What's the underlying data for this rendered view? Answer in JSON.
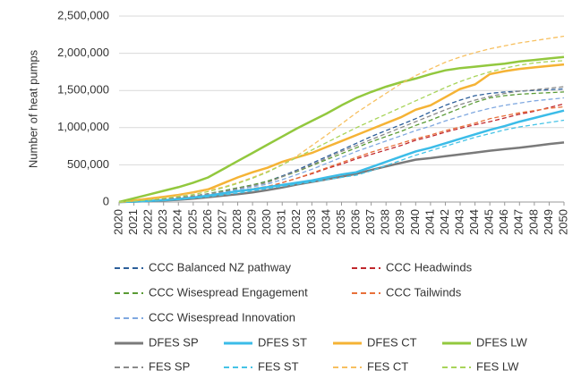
{
  "chart_data": {
    "type": "line",
    "ylabel": "Number of heat pumps",
    "x": [
      2020,
      2021,
      2022,
      2023,
      2024,
      2025,
      2026,
      2027,
      2028,
      2029,
      2030,
      2031,
      2032,
      2033,
      2034,
      2035,
      2036,
      2037,
      2038,
      2039,
      2040,
      2041,
      2042,
      2043,
      2044,
      2045,
      2046,
      2047,
      2048,
      2049,
      2050
    ],
    "xlim": [
      2020,
      2050
    ],
    "ylim": [
      0,
      2500000
    ],
    "yticks": [
      0,
      {
        "value": 500000,
        "label": "500,000"
      },
      {
        "value": 1000000,
        "label": "1,000,000"
      },
      {
        "value": 1500000,
        "label": "1,500,000"
      },
      {
        "value": 2000000,
        "label": "2,000,000"
      },
      {
        "value": 2500000,
        "label": "2,500,000"
      }
    ],
    "grid": true,
    "series": [
      {
        "name": "CCC Balanced NZ pathway",
        "color": "#2d5f9a",
        "style": "dashed",
        "values": [
          0,
          10000,
          20000,
          40000,
          60000,
          80000,
          110000,
          150000,
          190000,
          230000,
          280000,
          350000,
          430000,
          520000,
          610000,
          700000,
          790000,
          880000,
          960000,
          1040000,
          1120000,
          1210000,
          1300000,
          1370000,
          1430000,
          1460000,
          1480000,
          1490000,
          1500000,
          1510000,
          1520000
        ]
      },
      {
        "name": "CCC Headwinds",
        "color": "#c0282d",
        "style": "dashed",
        "values": [
          0,
          8000,
          16000,
          30000,
          45000,
          60000,
          85000,
          115000,
          145000,
          170000,
          200000,
          260000,
          320000,
          380000,
          450000,
          510000,
          580000,
          640000,
          700000,
          760000,
          830000,
          880000,
          940000,
          990000,
          1040000,
          1080000,
          1130000,
          1180000,
          1220000,
          1270000,
          1320000
        ]
      },
      {
        "name": "CCC Wisespread Engagement",
        "color": "#5a9b35",
        "style": "dashed",
        "values": [
          0,
          10000,
          20000,
          38000,
          58000,
          80000,
          110000,
          150000,
          190000,
          230000,
          280000,
          340000,
          410000,
          490000,
          570000,
          650000,
          730000,
          810000,
          880000,
          950000,
          1030000,
          1100000,
          1180000,
          1260000,
          1340000,
          1400000,
          1430000,
          1450000,
          1460000,
          1470000,
          1480000
        ]
      },
      {
        "name": "CCC Tailwinds",
        "color": "#e8703a",
        "style": "dashed",
        "values": [
          0,
          8000,
          18000,
          32000,
          48000,
          65000,
          90000,
          120000,
          150000,
          180000,
          210000,
          260000,
          320000,
          390000,
          460000,
          530000,
          600000,
          670000,
          730000,
          790000,
          850000,
          900000,
          960000,
          1010000,
          1060000,
          1120000,
          1160000,
          1200000,
          1230000,
          1260000,
          1280000
        ]
      },
      {
        "name": "CCC Wisespread Innovation",
        "color": "#7fa8e0",
        "style": "dashed",
        "values": [
          0,
          9000,
          19000,
          35000,
          52000,
          72000,
          100000,
          135000,
          170000,
          205000,
          240000,
          300000,
          370000,
          440000,
          520000,
          600000,
          680000,
          750000,
          820000,
          890000,
          960000,
          1020000,
          1090000,
          1150000,
          1210000,
          1260000,
          1300000,
          1330000,
          1360000,
          1380000,
          1400000
        ]
      },
      {
        "name": "DFES SP",
        "color": "#7a7a7a",
        "style": "solid",
        "values": [
          0,
          5000,
          12000,
          20000,
          30000,
          45000,
          65000,
          85000,
          105000,
          130000,
          160000,
          195000,
          235000,
          270000,
          305000,
          340000,
          380000,
          430000,
          480000,
          525000,
          570000,
          590000,
          615000,
          640000,
          665000,
          690000,
          710000,
          730000,
          755000,
          780000,
          800000
        ]
      },
      {
        "name": "DFES ST",
        "color": "#3bbce8",
        "style": "solid",
        "values": [
          0,
          6000,
          14000,
          25000,
          40000,
          60000,
          85000,
          115000,
          145000,
          170000,
          200000,
          230000,
          260000,
          290000,
          330000,
          370000,
          400000,
          470000,
          540000,
          610000,
          680000,
          730000,
          790000,
          850000,
          910000,
          970000,
          1020000,
          1080000,
          1130000,
          1180000,
          1230000
        ]
      },
      {
        "name": "DFES CT",
        "color": "#f5b335",
        "style": "solid",
        "values": [
          0,
          20000,
          45000,
          70000,
          95000,
          130000,
          170000,
          250000,
          330000,
          400000,
          460000,
          540000,
          600000,
          660000,
          740000,
          820000,
          900000,
          980000,
          1060000,
          1140000,
          1240000,
          1300000,
          1410000,
          1520000,
          1580000,
          1720000,
          1760000,
          1790000,
          1810000,
          1830000,
          1850000
        ]
      },
      {
        "name": "DFES LW",
        "color": "#92c83e",
        "style": "solid",
        "values": [
          0,
          50000,
          100000,
          150000,
          200000,
          260000,
          330000,
          440000,
          550000,
          660000,
          770000,
          880000,
          990000,
          1090000,
          1190000,
          1300000,
          1400000,
          1480000,
          1550000,
          1610000,
          1660000,
          1720000,
          1770000,
          1800000,
          1820000,
          1840000,
          1860000,
          1890000,
          1910000,
          1930000,
          1950000
        ]
      },
      {
        "name": "FES SP",
        "color": "#8a8a8a",
        "style": "dashed",
        "values": [
          0,
          10000,
          20000,
          40000,
          60000,
          80000,
          110000,
          140000,
          180000,
          220000,
          260000,
          340000,
          420000,
          500000,
          590000,
          680000,
          760000,
          840000,
          920000,
          1000000,
          1080000,
          1160000,
          1240000,
          1310000,
          1370000,
          1420000,
          1460000,
          1490000,
          1510000,
          1530000,
          1550000
        ]
      },
      {
        "name": "FES ST",
        "color": "#45c3e6",
        "style": "dashed",
        "values": [
          0,
          5000,
          12000,
          22000,
          35000,
          50000,
          70000,
          95000,
          120000,
          150000,
          180000,
          210000,
          240000,
          270000,
          300000,
          330000,
          360000,
          420000,
          490000,
          560000,
          630000,
          690000,
          750000,
          810000,
          870000,
          920000,
          970000,
          1010000,
          1040000,
          1070000,
          1100000
        ]
      },
      {
        "name": "FES CT",
        "color": "#f7c060",
        "style": "dashed",
        "values": [
          0,
          15000,
          35000,
          60000,
          90000,
          120000,
          160000,
          200000,
          260000,
          330000,
          410000,
          500000,
          620000,
          760000,
          900000,
          1050000,
          1200000,
          1330000,
          1460000,
          1590000,
          1700000,
          1790000,
          1880000,
          1950000,
          2010000,
          2060000,
          2100000,
          2140000,
          2170000,
          2200000,
          2230000
        ]
      },
      {
        "name": "FES LW",
        "color": "#a8d45a",
        "style": "dashed",
        "values": [
          0,
          12000,
          28000,
          50000,
          75000,
          100000,
          140000,
          190000,
          250000,
          320000,
          400000,
          500000,
          600000,
          700000,
          800000,
          900000,
          1000000,
          1090000,
          1180000,
          1270000,
          1360000,
          1450000,
          1540000,
          1620000,
          1690000,
          1750000,
          1800000,
          1840000,
          1870000,
          1890000,
          1900000
        ]
      }
    ]
  }
}
